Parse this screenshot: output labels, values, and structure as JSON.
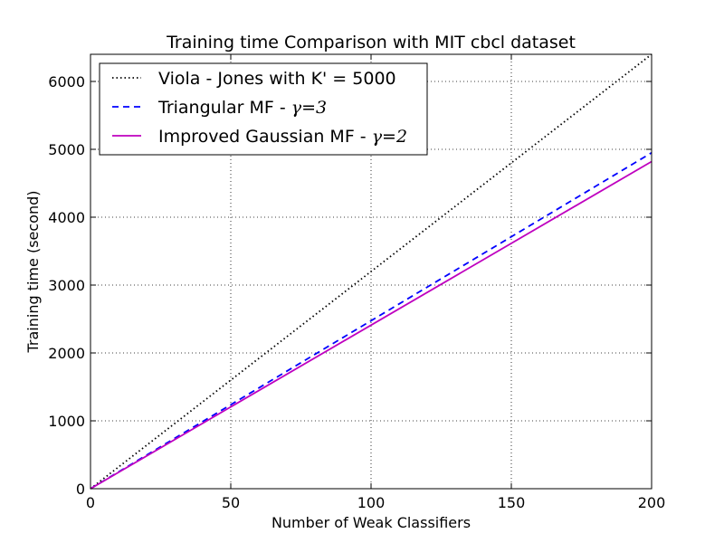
{
  "chart_data": {
    "type": "line",
    "title": "Training time Comparison with MIT cbcl dataset",
    "xlabel": "Number of Weak Classifiers",
    "ylabel": "Training time (second)",
    "xlim": [
      0,
      200
    ],
    "ylim": [
      0,
      6400
    ],
    "xticks": [
      0,
      50,
      100,
      150,
      200
    ],
    "xtick_labels": [
      "0",
      "50",
      "100",
      "150",
      "200"
    ],
    "yticks": [
      0,
      1000,
      2000,
      3000,
      4000,
      5000,
      6000
    ],
    "ytick_labels": [
      "0",
      "1000",
      "2000",
      "3000",
      "4000",
      "5000",
      "6000"
    ],
    "grid": true,
    "legend_position": "top-left",
    "series": [
      {
        "name": "Viola - Jones with K' = 5000",
        "name_prefix": "Viola - Jones with K' = 5000",
        "name_math": "",
        "style": "dotted",
        "color": "#000000",
        "x": [
          0,
          200
        ],
        "y": [
          0,
          6400
        ]
      },
      {
        "name": "Triangular MF - γ=3",
        "name_prefix": "Triangular MF - ",
        "name_math": "γ=3",
        "style": "dashed",
        "color": "#0000ff",
        "x": [
          0,
          200
        ],
        "y": [
          0,
          4950
        ]
      },
      {
        "name": "Improved Gaussian MF - γ=2",
        "name_prefix": "Improved Gaussian MF - ",
        "name_math": "γ=2",
        "style": "solid",
        "color": "#bf00bf",
        "x": [
          0,
          200
        ],
        "y": [
          0,
          4820
        ]
      }
    ]
  }
}
